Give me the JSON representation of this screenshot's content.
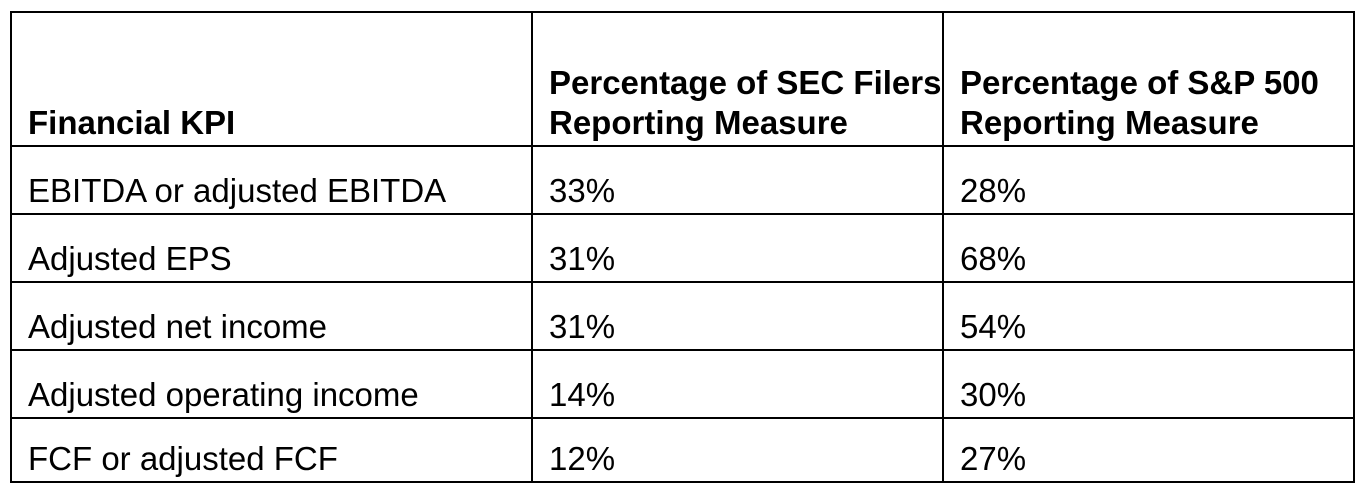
{
  "table": {
    "headers": [
      "Financial KPI",
      "Percentage of SEC Filers Reporting Measure",
      "Percentage of S&P 500 Reporting Measure"
    ],
    "rows": [
      [
        "EBITDA or adjusted EBITDA",
        "33%",
        "28%"
      ],
      [
        "Adjusted EPS",
        "31%",
        "68%"
      ],
      [
        "Adjusted net income",
        "31%",
        "54%"
      ],
      [
        "Adjusted operating income",
        "14%",
        "30%"
      ],
      [
        "FCF or adjusted FCF",
        "12%",
        "27%"
      ]
    ]
  }
}
